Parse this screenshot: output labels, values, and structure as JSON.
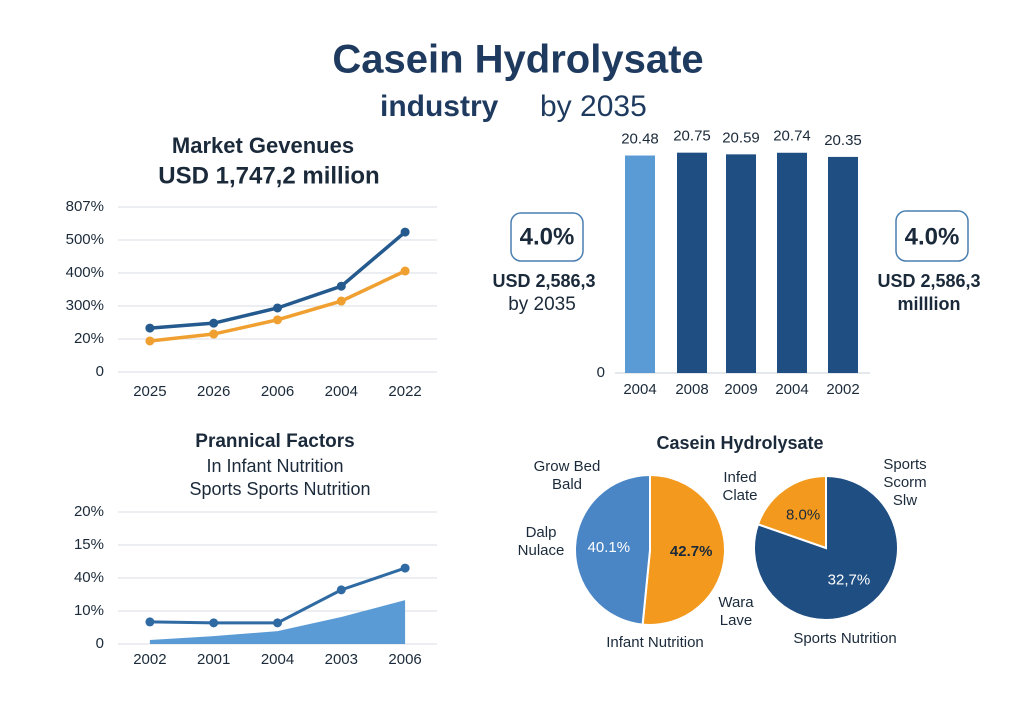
{
  "title": "Casein Hydrolysate",
  "subtitle": [
    "industry",
    "by 2035"
  ],
  "callouts": [
    {
      "value": "4.0%",
      "lines": [
        "USD 2,586,3",
        "by 2035"
      ]
    },
    {
      "value": "4.0%",
      "lines": [
        "USD 2,586,3",
        "milllion"
      ]
    }
  ],
  "chart_data": [
    {
      "type": "line",
      "title": "Market Gevenues",
      "subtitle": "USD 1,747,2 million",
      "categories": [
        "2025",
        "2026",
        "2006",
        "2004",
        "2022"
      ],
      "series": [
        {
          "color": "#255a8f",
          "values": [
            1.33,
            1.48,
            1.94,
            2.6,
            4.24
          ]
        },
        {
          "color": "#f0a030",
          "values": [
            0.94,
            1.15,
            1.58,
            2.15,
            3.06
          ]
        }
      ],
      "ylim": [
        0,
        5
      ],
      "yticks": [
        0,
        {
          "value": 1,
          "label": "20%"
        },
        {
          "value": 2,
          "label": "300%"
        },
        {
          "value": 3,
          "label": "400%"
        },
        {
          "value": 4,
          "label": "500%"
        },
        {
          "value": 5,
          "label": "807%"
        }
      ],
      "grid": true
    },
    {
      "type": "bar",
      "categories": [
        "2004",
        "2008",
        "2009",
        "2004",
        "2002"
      ],
      "values": [
        20.48,
        20.75,
        20.59,
        20.74,
        20.35
      ],
      "colors": [
        "#5b9bd5",
        "#1f4e82",
        "#1f4e82",
        "#1f4e82",
        "#1f4e82"
      ],
      "ylim": [
        0,
        21
      ],
      "yticks": [
        0
      ]
    },
    {
      "type": "area",
      "title": "Prannical Factors",
      "subtitle": [
        "In Infant Nutrition",
        "Sports Sports Nutrition"
      ],
      "categories": [
        "2002",
        "2001",
        "2004",
        "2003",
        "2006"
      ],
      "series": [
        {
          "color": "#5b9bd5",
          "values": [
            0.12,
            0.24,
            0.39,
            0.82,
            1.33
          ]
        },
        {
          "color": "#2f6aa3",
          "values": [
            0.67,
            0.64,
            0.64,
            1.64,
            2.3
          ]
        }
      ],
      "ylim": [
        0,
        4
      ],
      "yticks": [
        0,
        {
          "value": 1,
          "label": "10%"
        },
        {
          "value": 2,
          "label": "40%"
        },
        {
          "value": 3,
          "label": "15%"
        },
        {
          "value": 4,
          "label": "20%"
        }
      ],
      "grid": true
    },
    {
      "type": "pie",
      "title": "Casein Hydrolysate",
      "values": [
        42.7,
        40.1
      ],
      "value_labels": [
        "42.7%",
        "40.1%"
      ],
      "colors": [
        "#f39a1e",
        "#4a86c5"
      ],
      "annotations": [
        [
          "Grow Bed",
          "Bald"
        ],
        [
          "Dalp",
          "Nulace"
        ],
        [
          "Infed",
          "Clate"
        ],
        [
          "Wara",
          "Lave"
        ],
        [
          "Infant Nutrition"
        ]
      ]
    },
    {
      "type": "pie",
      "values": [
        32.7,
        8.0
      ],
      "value_labels": [
        "32,7%",
        "8.0%"
      ],
      "colors": [
        "#1f4e82",
        "#f39a1e"
      ],
      "annotations": [
        [
          "Sports",
          "Scorm",
          "Slw"
        ],
        [
          "Sports Nutrition"
        ]
      ]
    }
  ]
}
